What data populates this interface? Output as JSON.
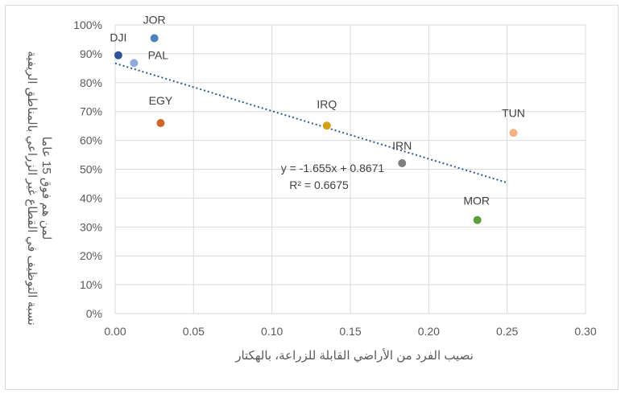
{
  "chart_data": {
    "type": "scatter",
    "title": "",
    "xlabel": "نصيب الفرد من الأراضي القابلة للزراعة، بالهكتار",
    "ylabel_lines": [
      "نسبة التوظيف في القطاع غير الزراعي بالمناطق الريفية",
      "لمن هم فوق 15 عاما"
    ],
    "xlim": [
      0,
      0.3
    ],
    "ylim": [
      0,
      1
    ],
    "x_ticks": [
      0,
      0.05,
      0.1,
      0.15,
      0.2,
      0.25,
      0.3
    ],
    "x_tick_labels": [
      "0.00",
      "0.05",
      "0.10",
      "0.15",
      "0.20",
      "0.25",
      "0.30"
    ],
    "y_ticks": [
      0,
      0.1,
      0.2,
      0.3,
      0.4,
      0.5,
      0.6,
      0.7,
      0.8,
      0.9,
      1.0
    ],
    "y_tick_labels": [
      "0%",
      "10%",
      "20%",
      "30%",
      "40%",
      "50%",
      "60%",
      "70%",
      "80%",
      "90%",
      "100%"
    ],
    "grid": true,
    "points": [
      {
        "label": "DJI",
        "x": 0.002,
        "y": 0.895,
        "color": "#2f5597"
      },
      {
        "label": "JOR",
        "x": 0.025,
        "y": 0.954,
        "color": "#4e81bd"
      },
      {
        "label": "PAL",
        "x": 0.012,
        "y": 0.868,
        "color": "#8faadc"
      },
      {
        "label": "EGY",
        "x": 0.029,
        "y": 0.66,
        "color": "#d0652b"
      },
      {
        "label": "IRQ",
        "x": 0.135,
        "y": 0.651,
        "color": "#d4a017"
      },
      {
        "label": "IRN",
        "x": 0.183,
        "y": 0.521,
        "color": "#7f7f7f"
      },
      {
        "label": "TUN",
        "x": 0.254,
        "y": 0.626,
        "color": "#f4b183"
      },
      {
        "label": "MOR",
        "x": 0.231,
        "y": 0.324,
        "color": "#5b9e3c"
      }
    ],
    "trendline": {
      "slope": -1.655,
      "intercept": 0.8671,
      "x_range": [
        0,
        0.25
      ],
      "color": "#2e5c8a",
      "equation": "y = -1.655x + 0.8671",
      "r2": "R² = 0.6675"
    }
  }
}
